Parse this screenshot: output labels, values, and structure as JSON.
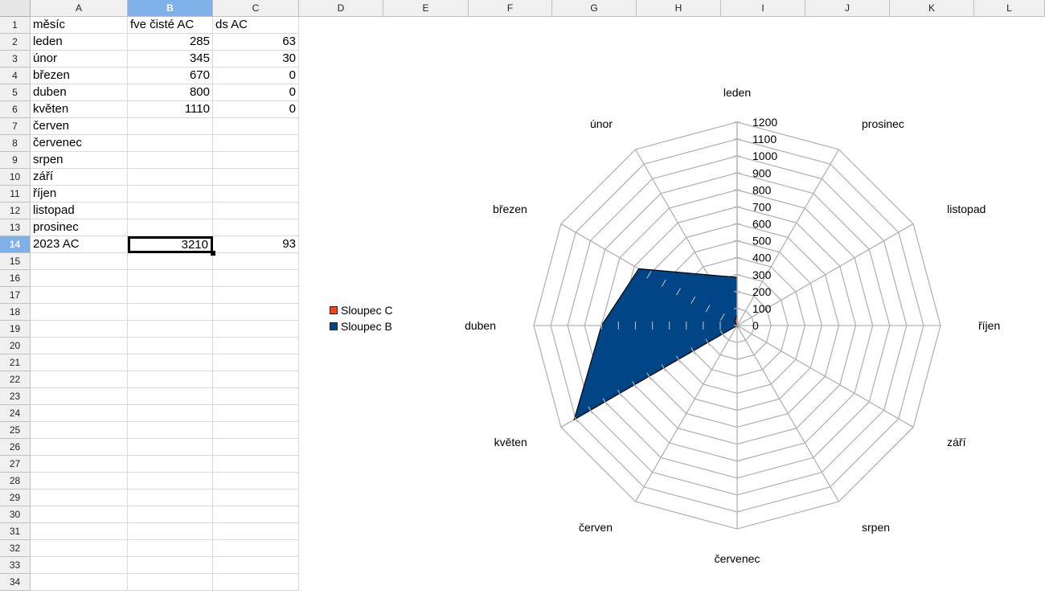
{
  "columns": [
    "A",
    "B",
    "C",
    "D",
    "E",
    "F",
    "G",
    "H",
    "I",
    "J",
    "K",
    "L"
  ],
  "selected_column": "B",
  "selected_row": 14,
  "row_numbers": [
    1,
    2,
    3,
    4,
    5,
    6,
    7,
    8,
    9,
    10,
    11,
    12,
    13,
    14,
    15,
    16,
    17,
    18,
    19,
    20,
    21,
    22,
    23,
    24,
    25,
    26,
    27,
    28,
    29,
    30,
    31,
    32,
    33,
    34
  ],
  "table": {
    "headers": [
      "měsíc",
      "fve čisté AC",
      "ds AC"
    ],
    "rows": [
      [
        "leden",
        "285",
        "63"
      ],
      [
        "únor",
        "345",
        "30"
      ],
      [
        "březen",
        "670",
        "0"
      ],
      [
        "duben",
        "800",
        "0"
      ],
      [
        "květen",
        "1110",
        "0"
      ],
      [
        "červen",
        "",
        ""
      ],
      [
        "červenec",
        "",
        ""
      ],
      [
        "srpen",
        "",
        ""
      ],
      [
        "září",
        "",
        ""
      ],
      [
        "říjen",
        "",
        ""
      ],
      [
        "listopad",
        "",
        ""
      ],
      [
        "prosinec",
        "",
        ""
      ],
      [
        "2023 AC",
        "3210",
        "93"
      ]
    ]
  },
  "colors": {
    "series_b": "#004586",
    "series_c": "#ff420e",
    "grid": "#b3b3b3",
    "selection_header": "#7fb0e8"
  },
  "chart_data": {
    "type": "radar",
    "categories": [
      "leden",
      "únor",
      "březen",
      "duben",
      "květen",
      "červen",
      "červenec",
      "srpen",
      "září",
      "říjen",
      "listopad",
      "prosinec"
    ],
    "category_order_note_ccw": true,
    "series": [
      {
        "name": "Sloupec B",
        "values": [
          285,
          345,
          670,
          800,
          1110,
          0,
          0,
          0,
          0,
          0,
          0,
          0
        ]
      },
      {
        "name": "Sloupec C",
        "values": [
          63,
          30,
          0,
          0,
          0,
          0,
          0,
          0,
          0,
          0,
          0,
          0
        ]
      }
    ],
    "ylim": [
      0,
      1200
    ],
    "ticks": [
      "0",
      "100",
      "200",
      "300",
      "400",
      "500",
      "600",
      "700",
      "800",
      "900",
      "1000",
      "1100",
      "1200"
    ],
    "legend": [
      "Sloupec C",
      "Sloupec B"
    ],
    "legend_position": "left"
  }
}
